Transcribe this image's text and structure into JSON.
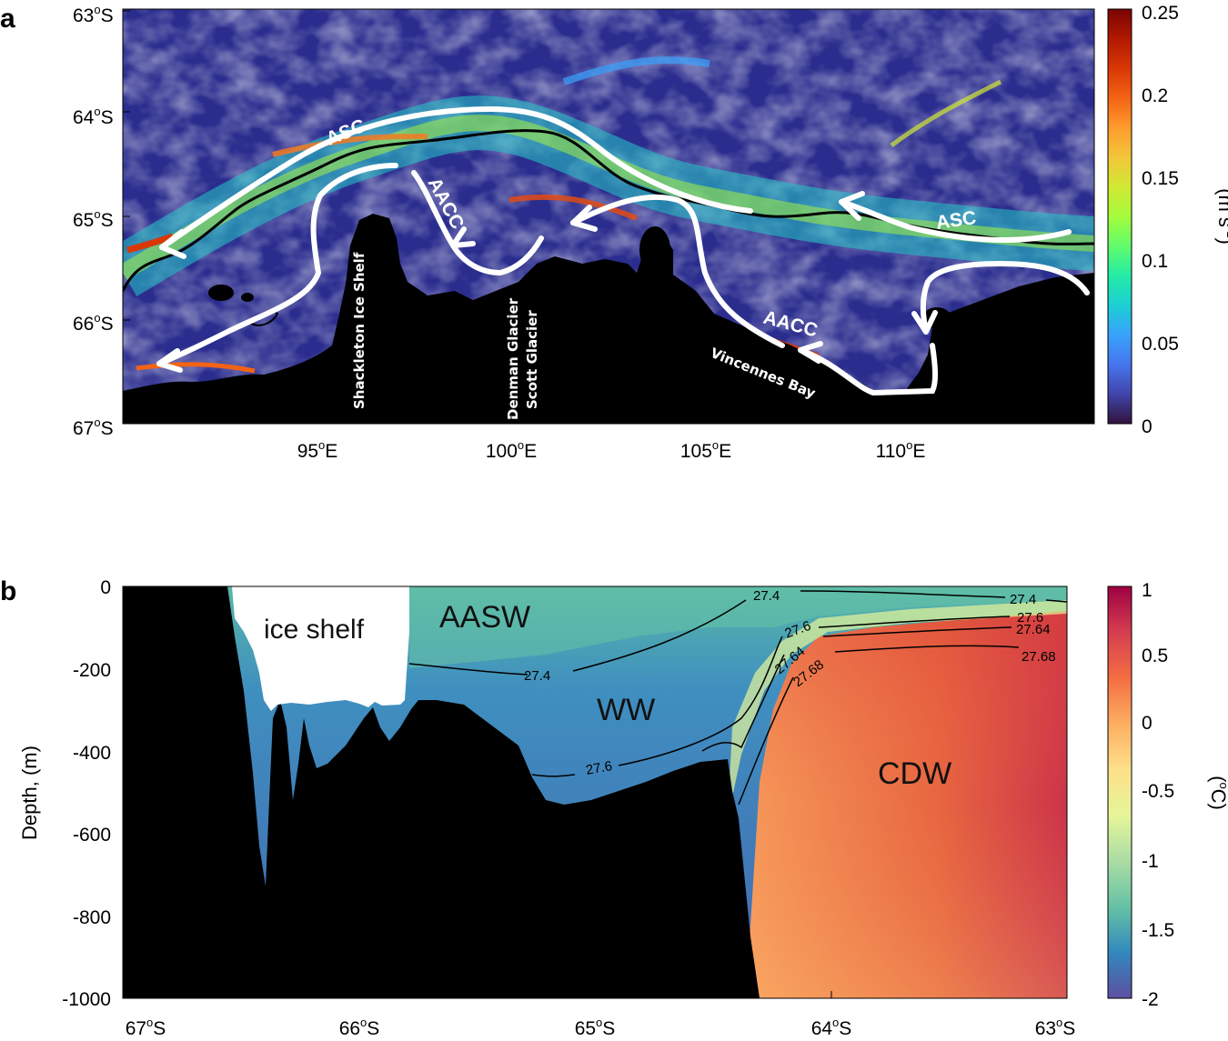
{
  "panel_a": {
    "letter": "a",
    "lat_ticks": [
      {
        "deg": "63",
        "sup": "o",
        "hem": "S"
      },
      {
        "deg": "64",
        "sup": "o",
        "hem": "S"
      },
      {
        "deg": "65",
        "sup": "o",
        "hem": "S"
      },
      {
        "deg": "66",
        "sup": "o",
        "hem": "S"
      },
      {
        "deg": "67",
        "sup": "o",
        "hem": "S"
      }
    ],
    "lon_ticks": [
      {
        "deg": "95",
        "sup": "o",
        "hem": "E"
      },
      {
        "deg": "100",
        "sup": "o",
        "hem": "E"
      },
      {
        "deg": "105",
        "sup": "o",
        "hem": "E"
      },
      {
        "deg": "110",
        "sup": "o",
        "hem": "E"
      }
    ],
    "flow_labels": {
      "asc_west": "ASC",
      "asc_east": "ASC",
      "aacc_west": "AACC",
      "aacc_east": "AACC"
    },
    "places": {
      "shackleton": "Shackleton Ice Shelf",
      "denman": "Denman Glacier",
      "scott": "Scott Glacier",
      "vincennes": "Vincennes Bay"
    },
    "colorbar": {
      "ticks": [
        "0.25",
        "0.2",
        "0.15",
        "0.1",
        "0.05",
        "0"
      ],
      "unit_main": "(m s",
      "unit_sup": "-1",
      "unit_end": ")",
      "colormap": [
        "#30123b",
        "#4145ab",
        "#4675ed",
        "#39a2fc",
        "#1bcfd4",
        "#24eca6",
        "#61fc6c",
        "#a4fc3b",
        "#d1e834",
        "#f3c63a",
        "#fe9b2d",
        "#f36315",
        "#d93806",
        "#b11901",
        "#7a0403"
      ]
    }
  },
  "panel_b": {
    "letter": "b",
    "y_ticks": [
      "0",
      "-200",
      "-400",
      "-600",
      "-800",
      "-1000"
    ],
    "ylabel": "Depth, (m)",
    "x_ticks": [
      {
        "deg": "67",
        "sup": "o",
        "hem": "S"
      },
      {
        "deg": "66",
        "sup": "o",
        "hem": "S"
      },
      {
        "deg": "65",
        "sup": "o",
        "hem": "S"
      },
      {
        "deg": "64",
        "sup": "o",
        "hem": "S"
      },
      {
        "deg": "63",
        "sup": "o",
        "hem": "S"
      }
    ],
    "water_masses": {
      "aasw": "AASW",
      "ww": "WW",
      "cdw": "CDW",
      "ice_shelf": "ice shelf"
    },
    "isopycnals": {
      "l1": "27.4",
      "l2": "27.4",
      "l3": "27.4",
      "l4": "27.6",
      "l5": "27.6",
      "l6": "27.64",
      "l7": "27.64",
      "l8": "27.68",
      "l9": "27.68",
      "l10": "27.6"
    },
    "colorbar": {
      "ticks": [
        "1",
        "0.5",
        "0",
        "-0.5",
        "-1",
        "-1.5",
        "-2"
      ],
      "unit_main": "(",
      "unit_sup": "o",
      "unit_end": "C)",
      "colormap": [
        "#9e0142",
        "#d53e4f",
        "#f46d43",
        "#fdae61",
        "#fee08b",
        "#e6f598",
        "#abdda4",
        "#66c2a5",
        "#3288bd",
        "#5e4fa2"
      ]
    }
  }
}
